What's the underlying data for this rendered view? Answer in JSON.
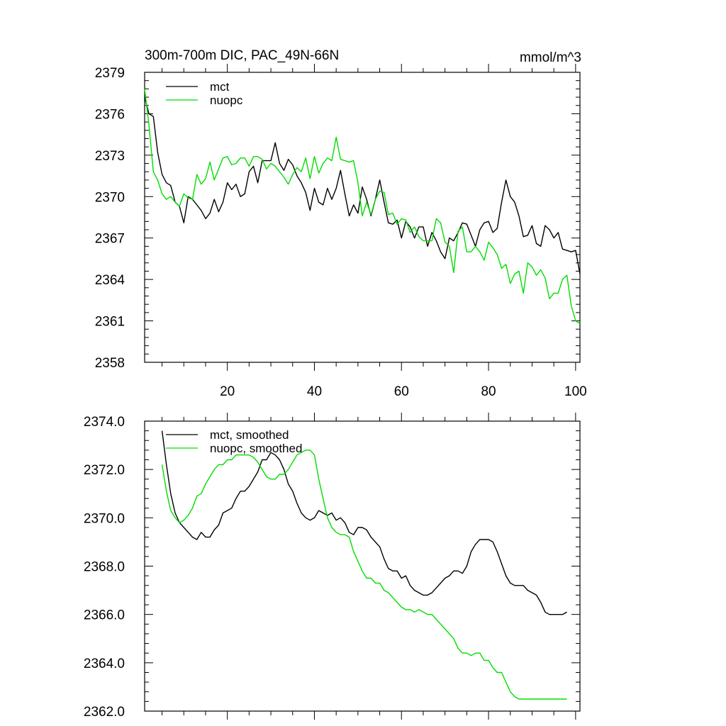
{
  "chart_data": [
    {
      "type": "line",
      "title": "300m-700m DIC, PAC_49N-66N",
      "units": "mmol/m^3",
      "xlim": [
        1,
        101
      ],
      "ylim": [
        2358,
        2379
      ],
      "xticks": [
        20,
        40,
        60,
        80,
        100
      ],
      "yticks": [
        2358,
        2361,
        2364,
        2367,
        2370,
        2373,
        2376,
        2379
      ],
      "ytick_labels": [
        "2358",
        "2361",
        "2364",
        "2367",
        "2370",
        "2373",
        "2376",
        "2379"
      ],
      "legend_position": "top-left",
      "series": [
        {
          "name": "mct",
          "color": "#000000",
          "x": [
            1,
            2,
            3,
            4,
            5,
            6,
            7,
            8,
            9,
            10,
            11,
            12,
            13,
            14,
            15,
            16,
            17,
            18,
            19,
            20,
            21,
            22,
            23,
            24,
            25,
            26,
            27,
            28,
            29,
            30,
            31,
            32,
            33,
            34,
            35,
            36,
            37,
            38,
            39,
            40,
            41,
            42,
            43,
            44,
            45,
            46,
            47,
            48,
            49,
            50,
            51,
            52,
            53,
            54,
            55,
            56,
            57,
            58,
            59,
            60,
            61,
            62,
            63,
            64,
            65,
            66,
            67,
            68,
            69,
            70,
            71,
            72,
            73,
            74,
            75,
            76,
            77,
            78,
            79,
            80,
            81,
            82,
            83,
            84,
            85,
            86,
            87,
            88,
            89,
            90,
            91,
            92,
            93,
            94,
            95,
            96,
            97,
            98,
            99,
            100,
            101
          ],
          "values": [
            2377.2,
            2376.0,
            2375.8,
            2373.2,
            2371.6,
            2371.0,
            2370.8,
            2369.6,
            2369.3,
            2368.1,
            2370.0,
            2369.8,
            2369.4,
            2369.0,
            2368.4,
            2368.8,
            2369.8,
            2368.9,
            2369.6,
            2371.0,
            2370.5,
            2370.9,
            2370.0,
            2370.2,
            2371.8,
            2372.2,
            2371.0,
            2372.6,
            2372.6,
            2372.6,
            2373.9,
            2372.4,
            2371.9,
            2372.7,
            2372.3,
            2371.5,
            2371.0,
            2370.3,
            2369.0,
            2370.6,
            2369.6,
            2369.4,
            2370.6,
            2369.8,
            2370.6,
            2371.9,
            2370.2,
            2368.6,
            2369.4,
            2368.8,
            2370.7,
            2369.8,
            2368.6,
            2369.8,
            2371.2,
            2369.6,
            2368.1,
            2368.0,
            2368.3,
            2367.0,
            2368.2,
            2367.8,
            2367.0,
            2367.8,
            2367.8,
            2366.4,
            2367.4,
            2366.8,
            2366.0,
            2365.5,
            2367.0,
            2366.8,
            2367.4,
            2368.1,
            2368.0,
            2367.2,
            2366.4,
            2367.6,
            2368.1,
            2368.2,
            2367.4,
            2367.7,
            2369.6,
            2371.2,
            2370.0,
            2369.6,
            2368.6,
            2367.1,
            2367.2,
            2367.9,
            2366.6,
            2366.4,
            2367.9,
            2367.6,
            2367.0,
            2367.4,
            2366.2,
            2366.1,
            2366.0,
            2366.1,
            2364.4
          ]
        },
        {
          "name": "nuopc",
          "color": "#00dd00",
          "x": [
            1,
            2,
            3,
            4,
            5,
            6,
            7,
            8,
            9,
            10,
            11,
            12,
            13,
            14,
            15,
            16,
            17,
            18,
            19,
            20,
            21,
            22,
            23,
            24,
            25,
            26,
            27,
            28,
            29,
            30,
            31,
            32,
            33,
            34,
            35,
            36,
            37,
            38,
            39,
            40,
            41,
            42,
            43,
            44,
            45,
            46,
            47,
            48,
            49,
            50,
            51,
            52,
            53,
            54,
            55,
            56,
            57,
            58,
            59,
            60,
            61,
            62,
            63,
            64,
            65,
            66,
            67,
            68,
            69,
            70,
            71,
            72,
            73,
            74,
            75,
            76,
            77,
            78,
            79,
            80,
            81,
            82,
            83,
            84,
            85,
            86,
            87,
            88,
            89,
            90,
            91,
            92,
            93,
            94,
            95,
            96,
            97,
            98,
            99,
            100,
            101
          ],
          "values": [
            2377.8,
            2375.2,
            2371.8,
            2371.2,
            2370.2,
            2369.8,
            2370.0,
            2369.6,
            2369.3,
            2370.2,
            2369.9,
            2369.8,
            2371.6,
            2370.9,
            2371.3,
            2372.5,
            2371.2,
            2372.0,
            2372.8,
            2372.9,
            2372.3,
            2372.4,
            2372.8,
            2372.8,
            2372.2,
            2372.9,
            2372.9,
            2372.7,
            2372.0,
            2372.4,
            2372.2,
            2371.8,
            2371.4,
            2370.9,
            2371.6,
            2372.1,
            2371.8,
            2372.8,
            2371.3,
            2372.9,
            2371.7,
            2372.4,
            2372.8,
            2372.6,
            2374.3,
            2372.7,
            2372.6,
            2372.5,
            2372.6,
            2371.0,
            2368.6,
            2369.6,
            2368.7,
            2369.8,
            2370.4,
            2370.3,
            2368.7,
            2368.8,
            2368.0,
            2368.4,
            2368.3,
            2367.4,
            2367.8,
            2367.1,
            2366.8,
            2366.8,
            2366.8,
            2368.4,
            2368.1,
            2366.7,
            2366.4,
            2364.5,
            2367.5,
            2367.8,
            2366.0,
            2366.0,
            2366.4,
            2366.0,
            2365.4,
            2366.7,
            2366.3,
            2365.8,
            2364.8,
            2365.1,
            2363.7,
            2364.4,
            2364.6,
            2363.0,
            2365.2,
            2364.9,
            2364.3,
            2364.7,
            2364.1,
            2362.6,
            2363.0,
            2363.0,
            2364.0,
            2364.3,
            2362.1,
            2361.0,
            2360.8
          ]
        }
      ]
    },
    {
      "type": "line",
      "title": "",
      "xlim": [
        1,
        101
      ],
      "ylim": [
        2362.0,
        2374.0
      ],
      "xticks": [
        20,
        40,
        60,
        80,
        100
      ],
      "yticks": [
        2362.0,
        2364.0,
        2366.0,
        2368.0,
        2370.0,
        2372.0,
        2374.0
      ],
      "ytick_labels": [
        "2362.0",
        "2364.0",
        "2366.0",
        "2368.0",
        "2370.0",
        "2372.0",
        "2374.0"
      ],
      "legend_position": "top-left",
      "series": [
        {
          "name": "mct, smoothed",
          "color": "#000000",
          "x": [
            5,
            6,
            7,
            8,
            9,
            10,
            11,
            12,
            13,
            14,
            15,
            16,
            17,
            18,
            19,
            20,
            21,
            22,
            23,
            24,
            25,
            26,
            27,
            28,
            29,
            30,
            31,
            32,
            33,
            34,
            35,
            36,
            37,
            38,
            39,
            40,
            41,
            42,
            43,
            44,
            45,
            46,
            47,
            48,
            49,
            50,
            51,
            52,
            53,
            54,
            55,
            56,
            57,
            58,
            59,
            60,
            61,
            62,
            63,
            64,
            65,
            66,
            67,
            68,
            69,
            70,
            71,
            72,
            73,
            74,
            75,
            76,
            77,
            78,
            79,
            80,
            81,
            82,
            83,
            84,
            85,
            86,
            87,
            88,
            89,
            90,
            91,
            92,
            93,
            94,
            95,
            96,
            97,
            98
          ],
          "values": [
            2373.6,
            2372.2,
            2371.0,
            2370.2,
            2369.8,
            2369.6,
            2369.4,
            2369.2,
            2369.1,
            2369.4,
            2369.2,
            2369.2,
            2369.5,
            2369.7,
            2370.2,
            2370.3,
            2370.4,
            2370.8,
            2371.1,
            2371.1,
            2371.3,
            2371.6,
            2371.9,
            2372.4,
            2372.4,
            2372.7,
            2372.6,
            2372.4,
            2372.0,
            2371.4,
            2371.1,
            2370.6,
            2370.2,
            2370.0,
            2369.9,
            2370.0,
            2370.3,
            2370.2,
            2370.1,
            2370.2,
            2369.9,
            2370.0,
            2369.8,
            2369.4,
            2369.3,
            2369.6,
            2369.6,
            2369.5,
            2369.2,
            2369.0,
            2368.8,
            2368.3,
            2367.9,
            2367.8,
            2367.8,
            2367.5,
            2367.6,
            2367.2,
            2367.0,
            2366.9,
            2366.8,
            2366.8,
            2366.9,
            2367.1,
            2367.3,
            2367.5,
            2367.6,
            2367.8,
            2367.8,
            2367.7,
            2368.0,
            2368.6,
            2368.9,
            2369.1,
            2369.1,
            2369.1,
            2369.0,
            2368.6,
            2368.1,
            2367.6,
            2367.3,
            2367.2,
            2367.2,
            2367.2,
            2367.0,
            2366.9,
            2366.8,
            2366.5,
            2366.1,
            2366.0,
            2366.0,
            2366.0,
            2366.0,
            2366.1
          ]
        },
        {
          "name": "nuopc, smoothed",
          "color": "#00dd00",
          "x": [
            5,
            6,
            7,
            8,
            9,
            10,
            11,
            12,
            13,
            14,
            15,
            16,
            17,
            18,
            19,
            20,
            21,
            22,
            23,
            24,
            25,
            26,
            27,
            28,
            29,
            30,
            31,
            32,
            33,
            34,
            35,
            36,
            37,
            38,
            39,
            40,
            41,
            42,
            43,
            44,
            45,
            46,
            47,
            48,
            49,
            50,
            51,
            52,
            53,
            54,
            55,
            56,
            57,
            58,
            59,
            60,
            61,
            62,
            63,
            64,
            65,
            66,
            67,
            68,
            69,
            70,
            71,
            72,
            73,
            74,
            75,
            76,
            77,
            78,
            79,
            80,
            81,
            82,
            83,
            84,
            85,
            86,
            87,
            88,
            89,
            90,
            91,
            92,
            93,
            94,
            95,
            96,
            97,
            98
          ],
          "values": [
            2372.2,
            2371.1,
            2370.3,
            2370.0,
            2369.8,
            2369.9,
            2370.1,
            2370.4,
            2370.9,
            2371.0,
            2371.4,
            2371.7,
            2372.0,
            2372.2,
            2372.2,
            2372.4,
            2372.4,
            2372.6,
            2372.6,
            2372.6,
            2372.6,
            2372.5,
            2372.3,
            2372.0,
            2371.7,
            2371.6,
            2371.6,
            2371.8,
            2371.8,
            2372.0,
            2372.3,
            2372.6,
            2372.7,
            2372.8,
            2372.8,
            2372.6,
            2371.6,
            2370.8,
            2370.0,
            2369.6,
            2369.4,
            2369.3,
            2369.3,
            2369.2,
            2368.6,
            2368.2,
            2367.8,
            2367.5,
            2367.5,
            2367.3,
            2367.3,
            2367.0,
            2366.9,
            2366.7,
            2366.5,
            2366.3,
            2366.2,
            2366.2,
            2366.1,
            2366.2,
            2366.1,
            2366.0,
            2366.0,
            2365.8,
            2365.6,
            2365.4,
            2365.2,
            2365.0,
            2364.6,
            2364.4,
            2364.4,
            2364.3,
            2364.4,
            2364.4,
            2364.1,
            2364.1,
            2363.8,
            2363.6,
            2363.6,
            2363.2,
            2362.8,
            2362.6,
            2362.5,
            2362.5,
            2362.5,
            2362.5,
            2362.5,
            2362.5,
            2362.5,
            2362.5,
            2362.5,
            2362.5,
            2362.5,
            2362.5
          ]
        }
      ]
    }
  ]
}
